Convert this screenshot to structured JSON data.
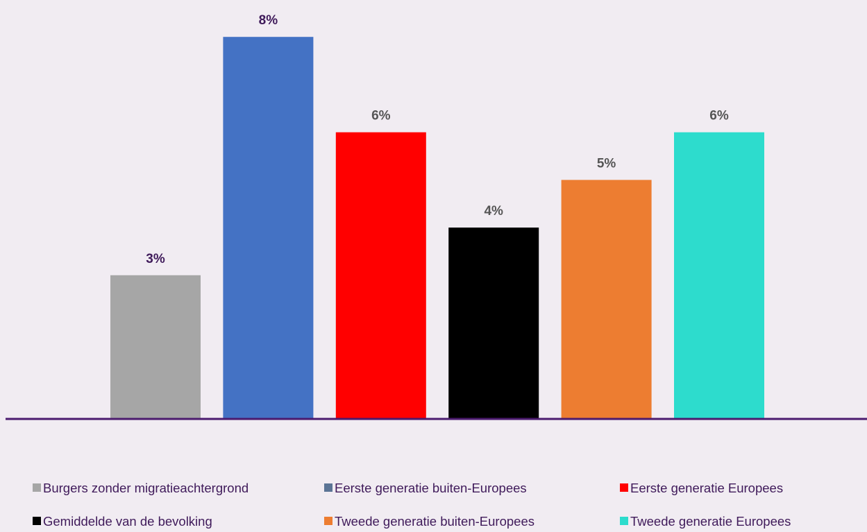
{
  "chart_data": {
    "type": "bar",
    "categories": [
      "Burgers zonder migratieachtergrond",
      "Eerste generatie buiten-Europees",
      "Eerste generatie Europees",
      "Gemiddelde van de bevolking",
      "Tweede generatie buiten-Europees",
      "Tweede generatie Europees"
    ],
    "values": [
      3,
      8,
      6,
      4,
      5,
      6
    ],
    "value_labels": [
      "3%",
      "8%",
      "6%",
      "4%",
      "5%",
      "6%"
    ],
    "colors": [
      "#a6a6a6",
      "#4472c4",
      "#ff0000",
      "#000000",
      "#ed7d31",
      "#2ddccd"
    ],
    "label_colors": [
      "#3f1a5a",
      "#3f1a5a",
      "#555555",
      "#555555",
      "#555555",
      "#555555"
    ],
    "legend_marker_colors": [
      "#a6a6a6",
      "#5b7495",
      "#ff0000",
      "#000000",
      "#ed7d31",
      "#2ddccd"
    ],
    "ylim": [
      0,
      8.6
    ],
    "axis_color": "#4b1a6e",
    "legend_text_color": "#3f1a5a",
    "legend_position": "bottom",
    "grid": false
  }
}
